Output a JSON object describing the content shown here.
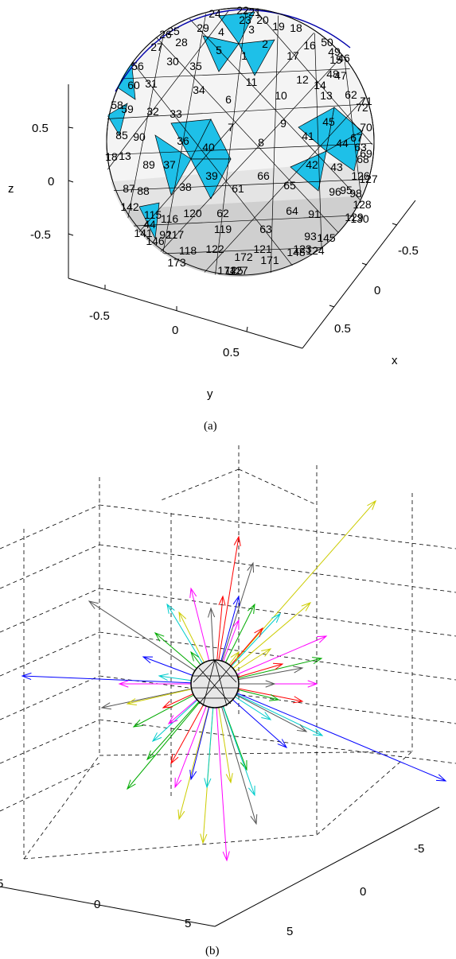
{
  "chart_data": [
    {
      "type": "3d-mesh",
      "caption": "(a)",
      "xlabel": "x",
      "ylabel": "y",
      "zlabel": "z",
      "x_ticks": [
        "-0.5",
        "0",
        "0.5"
      ],
      "y_ticks": [
        "-0.5",
        "0",
        "0.5"
      ],
      "z_ticks": [
        "0.5",
        "0",
        "-0.5"
      ],
      "highlight_color": "#1ec0e8",
      "face_colors": [
        "#ffffff",
        "#ebebeb",
        "#d7d7d7",
        "#c6c6c6"
      ],
      "triangle_labels": [
        "24",
        "22",
        "21",
        "23",
        "20",
        "19",
        "18",
        "29",
        "4",
        "3",
        "26",
        "28",
        "27",
        "25",
        "16",
        "50",
        "49",
        "15",
        "46",
        "2",
        "5",
        "1",
        "17",
        "56",
        "30",
        "35",
        "48",
        "47",
        "14",
        "11",
        "12",
        "60",
        "31",
        "34",
        "10",
        "13",
        "62",
        "72",
        "71",
        "58",
        "59",
        "6",
        "32",
        "33",
        "45",
        "70",
        "9",
        "7",
        "8",
        "85",
        "90",
        "36",
        "40",
        "41",
        "44",
        "67",
        "18",
        "13",
        "63",
        "68",
        "69",
        "89",
        "37",
        "39",
        "66",
        "42",
        "43",
        "126",
        "127",
        "38",
        "65",
        "61",
        "87",
        "88",
        "96",
        "95",
        "98",
        "128",
        "142",
        "120",
        "64",
        "91",
        "115",
        "116",
        "44",
        "129",
        "130",
        "62",
        "119",
        "63",
        "141",
        "92",
        "93",
        "145",
        "146",
        "117",
        "118",
        "122",
        "121",
        "148",
        "123",
        "124",
        "172",
        "171",
        "173",
        "174",
        "125",
        "127"
      ]
    },
    {
      "type": "3d-vector-field",
      "caption": "(b)",
      "x_ticks": [
        "5",
        "0",
        "5"
      ],
      "y_ticks": [
        "-5",
        "0",
        "5"
      ],
      "grid": true,
      "vector_colors": [
        "#0000ff",
        "#ff0000",
        "#00aa00",
        "#ff00ff",
        "#00cccc",
        "#cccc00",
        "#555555"
      ]
    }
  ]
}
